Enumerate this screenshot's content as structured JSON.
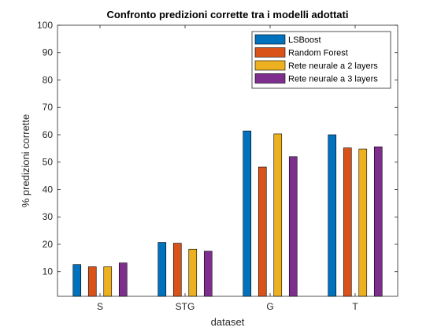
{
  "chart_data": {
    "type": "bar",
    "title": "Confronto predizioni corrette tra i modelli adottati",
    "xlabel": "dataset",
    "ylabel": "% predizioni corrette",
    "categories": [
      "S",
      "STG",
      "G",
      "T"
    ],
    "ylim": [
      1,
      100
    ],
    "yticks": [
      10,
      20,
      30,
      40,
      50,
      60,
      70,
      80,
      90,
      100
    ],
    "grid": false,
    "legend_position": "top-right",
    "series": [
      {
        "name": "LSBoost",
        "color": "#0072BD",
        "values": [
          12.6,
          20.7,
          61.4,
          60.0
        ]
      },
      {
        "name": "Random Forest",
        "color": "#D95319",
        "values": [
          11.8,
          20.4,
          48.2,
          55.2
        ]
      },
      {
        "name": "Rete neurale a 2 layers",
        "color": "#EDB120",
        "values": [
          11.8,
          18.2,
          60.3,
          54.8
        ]
      },
      {
        "name": "Rete neurale a 3 layers",
        "color": "#7E2F8E",
        "values": [
          13.2,
          17.5,
          52.0,
          55.6
        ]
      }
    ]
  }
}
